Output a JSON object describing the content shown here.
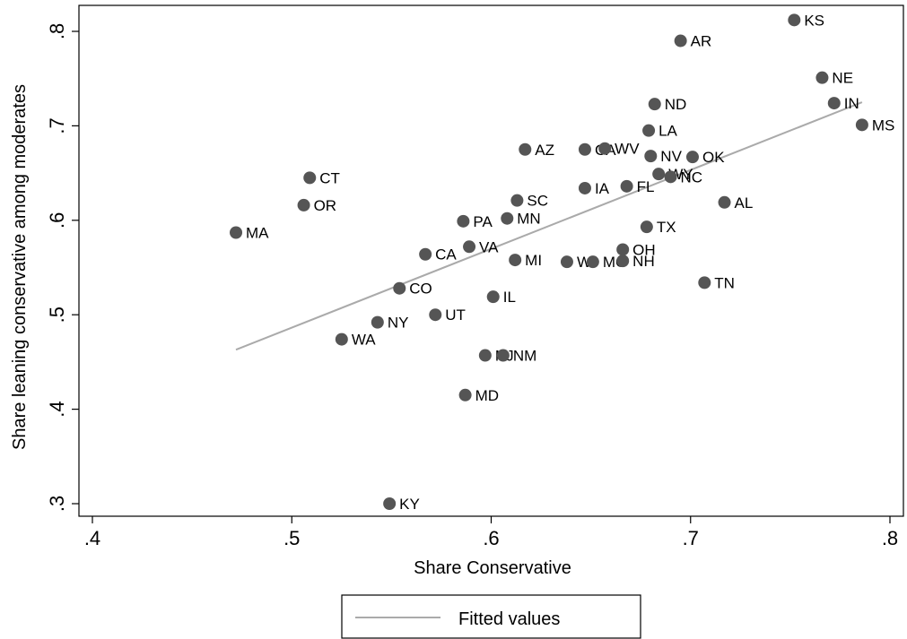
{
  "chart_data": {
    "type": "scatter",
    "xlabel": "Share Conservative",
    "ylabel": "Share leaning conservative among moderates",
    "xlim": [
      0.4,
      0.8
    ],
    "ylim": [
      0.3,
      0.8
    ],
    "x_ticks": [
      0.4,
      0.5,
      0.6,
      0.7,
      0.8
    ],
    "x_tick_labels": [
      ".4",
      ".5",
      ".6",
      ".7",
      ".8"
    ],
    "y_ticks": [
      0.3,
      0.4,
      0.5,
      0.6,
      0.7,
      0.8
    ],
    "y_tick_labels": [
      ".3",
      ".4",
      ".5",
      ".6",
      ".7",
      ".8"
    ],
    "grid": false,
    "legend": {
      "placement": "bottom-center",
      "entries": [
        "Fitted values"
      ]
    },
    "colors": {
      "points": "#555555",
      "fit_line": "#aaaaaa",
      "axes": "#000000"
    },
    "points": [
      {
        "label": "KS",
        "x": 0.752,
        "y": 0.812
      },
      {
        "label": "AR",
        "x": 0.695,
        "y": 0.79
      },
      {
        "label": "NE",
        "x": 0.766,
        "y": 0.751
      },
      {
        "label": "IN",
        "x": 0.772,
        "y": 0.724
      },
      {
        "label": "ND",
        "x": 0.682,
        "y": 0.723
      },
      {
        "label": "MS",
        "x": 0.786,
        "y": 0.701
      },
      {
        "label": "LA",
        "x": 0.679,
        "y": 0.695
      },
      {
        "label": "AZ",
        "x": 0.617,
        "y": 0.675
      },
      {
        "label": "CA",
        "x": 0.647,
        "y": 0.675
      },
      {
        "label": "WV",
        "x": 0.657,
        "y": 0.676
      },
      {
        "label": "NV",
        "x": 0.68,
        "y": 0.668
      },
      {
        "label": "OK",
        "x": 0.701,
        "y": 0.667
      },
      {
        "label": "WY",
        "x": 0.684,
        "y": 0.649
      },
      {
        "label": "NC",
        "x": 0.69,
        "y": 0.646
      },
      {
        "label": "CT",
        "x": 0.509,
        "y": 0.645
      },
      {
        "label": "FL",
        "x": 0.668,
        "y": 0.636
      },
      {
        "label": "IA",
        "x": 0.647,
        "y": 0.634
      },
      {
        "label": "SC",
        "x": 0.613,
        "y": 0.621
      },
      {
        "label": "AL",
        "x": 0.717,
        "y": 0.619
      },
      {
        "label": "OR",
        "x": 0.506,
        "y": 0.616
      },
      {
        "label": "PA",
        "x": 0.586,
        "y": 0.599
      },
      {
        "label": "MN",
        "x": 0.608,
        "y": 0.602
      },
      {
        "label": "TX",
        "x": 0.678,
        "y": 0.593
      },
      {
        "label": "MA",
        "x": 0.472,
        "y": 0.587
      },
      {
        "label": "VA",
        "x": 0.589,
        "y": 0.572
      },
      {
        "label": "OH",
        "x": 0.666,
        "y": 0.569
      },
      {
        "label": "CA",
        "x": 0.567,
        "y": 0.564
      },
      {
        "label": "MI",
        "x": 0.612,
        "y": 0.558
      },
      {
        "label": "WI",
        "x": 0.638,
        "y": 0.556
      },
      {
        "label": "MO",
        "x": 0.651,
        "y": 0.556
      },
      {
        "label": "NH",
        "x": 0.666,
        "y": 0.557
      },
      {
        "label": "TN",
        "x": 0.707,
        "y": 0.534
      },
      {
        "label": "CO",
        "x": 0.554,
        "y": 0.528
      },
      {
        "label": "IL",
        "x": 0.601,
        "y": 0.519
      },
      {
        "label": "UT",
        "x": 0.572,
        "y": 0.5
      },
      {
        "label": "NY",
        "x": 0.543,
        "y": 0.492
      },
      {
        "label": "WA",
        "x": 0.525,
        "y": 0.474
      },
      {
        "label": "NJ",
        "x": 0.597,
        "y": 0.457
      },
      {
        "label": "NM",
        "x": 0.606,
        "y": 0.457
      },
      {
        "label": "MD",
        "x": 0.587,
        "y": 0.415
      },
      {
        "label": "KY",
        "x": 0.549,
        "y": 0.3
      }
    ],
    "fit_line": {
      "name": "Fitted values",
      "x": [
        0.472,
        0.786
      ],
      "y": [
        0.463,
        0.725
      ]
    }
  }
}
